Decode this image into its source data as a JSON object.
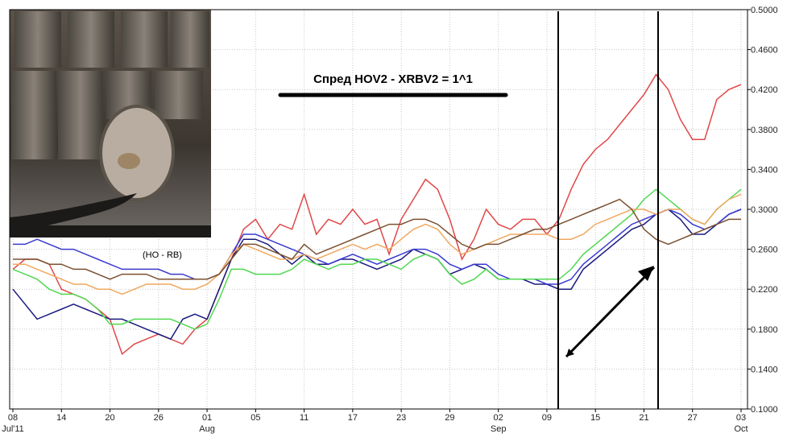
{
  "chart_data": {
    "type": "line",
    "annotation": "Спред HOV2 -  XRBV2 = 1^1",
    "series_label": "(HO - RB)",
    "categories": [
      "08",
      null,
      null,
      null,
      "14",
      null,
      null,
      null,
      "20",
      null,
      null,
      null,
      "26",
      null,
      null,
      null,
      "01",
      null,
      null,
      null,
      "05",
      null,
      null,
      null,
      "11",
      null,
      null,
      null,
      "17",
      null,
      null,
      null,
      "23",
      null,
      null,
      null,
      "29",
      null,
      null,
      null,
      "02",
      null,
      null,
      null,
      "09",
      null,
      null,
      null,
      "15",
      null,
      null,
      null,
      "21",
      null,
      null,
      null,
      "27",
      null,
      null,
      null,
      "03"
    ],
    "months": [
      "Jul'11",
      null,
      null,
      null,
      null,
      null,
      null,
      null,
      null,
      null,
      null,
      null,
      null,
      null,
      null,
      null,
      "Aug",
      null,
      null,
      null,
      null,
      null,
      null,
      null,
      null,
      null,
      null,
      null,
      null,
      null,
      null,
      null,
      null,
      null,
      null,
      null,
      null,
      null,
      null,
      null,
      "Sep",
      null,
      null,
      null,
      null,
      null,
      null,
      null,
      null,
      null,
      null,
      null,
      null,
      null,
      null,
      null,
      null,
      null,
      null,
      null,
      "Oct"
    ],
    "ylim": [
      0.1,
      0.5
    ],
    "yticks": [
      {
        "value": 0.1,
        "label": "0.1000"
      },
      {
        "value": 0.14,
        "label": "0.1400"
      },
      {
        "value": 0.18,
        "label": "0.1800"
      },
      {
        "value": 0.22,
        "label": "0.2200"
      },
      {
        "value": 0.26,
        "label": "0.2600"
      },
      {
        "value": 0.3,
        "label": "0.3000"
      },
      {
        "value": 0.34,
        "label": "0.3400"
      },
      {
        "value": 0.38,
        "label": "0.3800"
      },
      {
        "value": 0.42,
        "label": "0.4200"
      },
      {
        "value": 0.46,
        "label": "0.4600"
      },
      {
        "value": 0.5,
        "label": "0.5000"
      }
    ],
    "grid": true,
    "series": [
      {
        "color": "#e04848",
        "values": [
          0.24,
          0.25,
          0.25,
          0.245,
          0.22,
          0.215,
          0.21,
          0.2,
          0.19,
          0.155,
          0.165,
          0.17,
          0.175,
          0.17,
          0.165,
          0.18,
          0.19,
          0.22,
          0.25,
          0.28,
          0.29,
          0.27,
          0.285,
          0.28,
          0.315,
          0.275,
          0.29,
          0.285,
          0.3,
          0.285,
          0.29,
          0.255,
          0.29,
          0.31,
          0.33,
          0.32,
          0.29,
          0.25,
          0.27,
          0.3,
          0.285,
          0.28,
          0.29,
          0.29,
          0.275,
          0.29,
          0.32,
          0.345,
          0.36,
          0.37,
          0.385,
          0.4,
          0.415,
          0.435,
          0.42,
          0.39,
          0.37,
          0.37,
          0.41,
          0.42,
          0.425
        ]
      },
      {
        "color": "#1a1a80",
        "values": [
          0.22,
          0.205,
          0.19,
          0.195,
          0.2,
          0.205,
          0.2,
          0.195,
          0.19,
          0.19,
          0.185,
          0.18,
          0.175,
          0.17,
          0.19,
          0.195,
          0.19,
          0.22,
          0.25,
          0.27,
          0.27,
          0.265,
          0.255,
          0.245,
          0.255,
          0.245,
          0.245,
          0.25,
          0.25,
          0.245,
          0.24,
          0.245,
          0.25,
          0.26,
          0.255,
          0.25,
          0.235,
          0.24,
          0.245,
          0.24,
          0.23,
          0.23,
          0.23,
          0.225,
          0.225,
          0.22,
          0.22,
          0.24,
          0.25,
          0.26,
          0.27,
          0.28,
          0.285,
          0.295,
          0.3,
          0.29,
          0.275,
          0.275,
          0.285,
          0.295,
          0.3
        ]
      },
      {
        "color": "#3a3ad0",
        "values": [
          0.265,
          0.265,
          0.27,
          0.265,
          0.26,
          0.26,
          0.255,
          0.25,
          0.245,
          0.24,
          0.24,
          0.24,
          0.24,
          0.235,
          0.235,
          0.23,
          0.23,
          0.235,
          0.255,
          0.275,
          0.275,
          0.27,
          0.265,
          0.26,
          0.255,
          0.25,
          0.245,
          0.25,
          0.255,
          0.25,
          0.245,
          0.25,
          0.255,
          0.26,
          0.26,
          0.255,
          0.245,
          0.24,
          0.245,
          0.245,
          0.235,
          0.23,
          0.23,
          0.23,
          0.225,
          0.225,
          0.23,
          0.245,
          0.255,
          0.265,
          0.275,
          0.285,
          0.29,
          0.295,
          0.3,
          0.295,
          0.285,
          0.28,
          0.285,
          0.295,
          0.3
        ]
      },
      {
        "color": "#50d850",
        "values": [
          0.24,
          0.235,
          0.23,
          0.22,
          0.215,
          0.215,
          0.21,
          0.2,
          0.185,
          0.185,
          0.19,
          0.19,
          0.19,
          0.19,
          0.185,
          0.18,
          0.185,
          0.21,
          0.24,
          0.24,
          0.235,
          0.235,
          0.235,
          0.24,
          0.25,
          0.245,
          0.24,
          0.245,
          0.245,
          0.25,
          0.25,
          0.245,
          0.24,
          0.25,
          0.255,
          0.25,
          0.235,
          0.225,
          0.23,
          0.24,
          0.23,
          0.23,
          0.23,
          0.23,
          0.23,
          0.23,
          0.24,
          0.255,
          0.265,
          0.275,
          0.285,
          0.295,
          0.31,
          0.32,
          0.31,
          0.3,
          0.29,
          0.285,
          0.3,
          0.31,
          0.32
        ]
      },
      {
        "color": "#f0a860",
        "values": [
          0.245,
          0.245,
          0.24,
          0.235,
          0.23,
          0.225,
          0.225,
          0.22,
          0.22,
          0.215,
          0.22,
          0.225,
          0.225,
          0.225,
          0.22,
          0.22,
          0.225,
          0.235,
          0.255,
          0.265,
          0.26,
          0.255,
          0.25,
          0.25,
          0.255,
          0.25,
          0.255,
          0.26,
          0.265,
          0.26,
          0.265,
          0.26,
          0.27,
          0.28,
          0.285,
          0.28,
          0.265,
          0.255,
          0.26,
          0.265,
          0.27,
          0.275,
          0.275,
          0.275,
          0.275,
          0.27,
          0.27,
          0.275,
          0.285,
          0.29,
          0.295,
          0.3,
          0.3,
          0.295,
          0.3,
          0.3,
          0.29,
          0.285,
          0.3,
          0.31,
          0.315
        ]
      },
      {
        "color": "#7a5030",
        "values": [
          0.25,
          0.25,
          0.25,
          0.245,
          0.245,
          0.24,
          0.24,
          0.235,
          0.23,
          0.235,
          0.235,
          0.235,
          0.23,
          0.23,
          0.23,
          0.23,
          0.23,
          0.235,
          0.25,
          0.265,
          0.265,
          0.26,
          0.255,
          0.25,
          0.265,
          0.255,
          0.26,
          0.265,
          0.27,
          0.275,
          0.28,
          0.285,
          0.285,
          0.29,
          0.29,
          0.285,
          0.275,
          0.265,
          0.26,
          0.265,
          0.265,
          0.27,
          0.275,
          0.28,
          0.28,
          0.285,
          0.29,
          0.295,
          0.3,
          0.305,
          0.31,
          0.3,
          0.28,
          0.27,
          0.265,
          0.27,
          0.275,
          0.28,
          0.285,
          0.29,
          0.29
        ]
      }
    ]
  }
}
